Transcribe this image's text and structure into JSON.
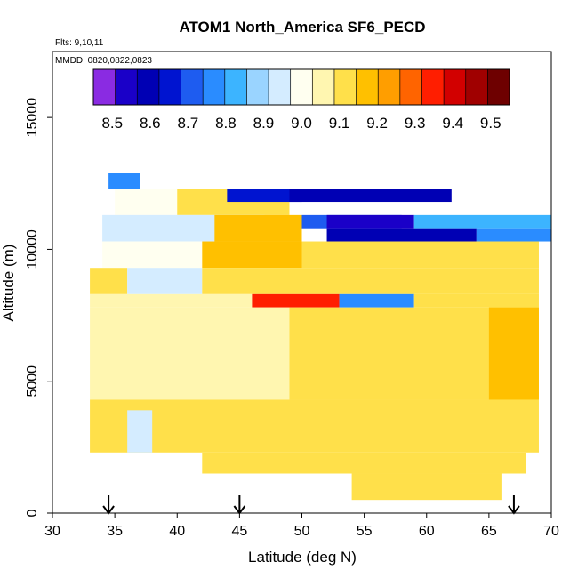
{
  "chart_data": {
    "type": "heatmap",
    "title": "ATOM1 North_America SF6_PECD",
    "info_lines": [
      "Flts: 9,10,11",
      "MMDD: 0820,0822,0823"
    ],
    "xlabel": "Latitude (deg N)",
    "ylabel": "Altitude (m)",
    "xlim": [
      30,
      70
    ],
    "ylim": [
      0,
      17500
    ],
    "x_ticks": [
      "30",
      "35",
      "40",
      "45",
      "50",
      "55",
      "60",
      "65",
      "70"
    ],
    "y_ticks": [
      "0",
      "5000",
      "10000",
      "15000"
    ],
    "arrow_latitudes": [
      34.5,
      45,
      67
    ],
    "colorbar": {
      "range": [
        8.45,
        9.55
      ],
      "ticks": [
        "8.5",
        "8.6",
        "8.7",
        "8.8",
        "8.9",
        "9.0",
        "9.1",
        "9.2",
        "9.3",
        "9.4",
        "9.5"
      ],
      "colors": [
        "#8a2be2",
        "#1a00c8",
        "#0000b4",
        "#0014d0",
        "#1e5cf0",
        "#2a8cff",
        "#3cb4ff",
        "#9ad4ff",
        "#d4ecff",
        "#fffff0",
        "#fff6b0",
        "#ffe04a",
        "#ffc000",
        "#ff9e00",
        "#ff6400",
        "#ff1e00",
        "#d20000",
        "#a00000",
        "#6e0000"
      ]
    },
    "grid": false,
    "regions": [
      {
        "lat": [
          34.5,
          37
        ],
        "alt": [
          12300,
          12900
        ],
        "value": 8.78
      },
      {
        "lat": [
          35,
          47
        ],
        "alt": [
          11300,
          12300
        ],
        "value": 9.0
      },
      {
        "lat": [
          40,
          49
        ],
        "alt": [
          11300,
          12300
        ],
        "value": 9.12
      },
      {
        "lat": [
          44,
          50
        ],
        "alt": [
          11800,
          12300
        ],
        "value": 8.68
      },
      {
        "lat": [
          49,
          62
        ],
        "alt": [
          11800,
          12300
        ],
        "value": 8.6
      },
      {
        "lat": [
          34,
          47
        ],
        "alt": [
          10300,
          11300
        ],
        "value": 8.95
      },
      {
        "lat": [
          43,
          50
        ],
        "alt": [
          10300,
          11300
        ],
        "value": 9.15
      },
      {
        "lat": [
          50,
          58
        ],
        "alt": [
          10800,
          11300
        ],
        "value": 8.72
      },
      {
        "lat": [
          52,
          59
        ],
        "alt": [
          10800,
          11300
        ],
        "value": 8.55
      },
      {
        "lat": [
          59,
          70
        ],
        "alt": [
          10800,
          11300
        ],
        "value": 8.82
      },
      {
        "lat": [
          52,
          64
        ],
        "alt": [
          10300,
          10800
        ],
        "value": 8.6
      },
      {
        "lat": [
          64,
          70
        ],
        "alt": [
          10300,
          10800
        ],
        "value": 8.76
      },
      {
        "lat": [
          34,
          42
        ],
        "alt": [
          9300,
          10300
        ],
        "value": 8.98
      },
      {
        "lat": [
          42,
          50
        ],
        "alt": [
          9300,
          10300
        ],
        "value": 9.2
      },
      {
        "lat": [
          50,
          69
        ],
        "alt": [
          9300,
          10300
        ],
        "value": 9.12
      },
      {
        "lat": [
          33,
          36
        ],
        "alt": [
          8300,
          9300
        ],
        "value": 9.1
      },
      {
        "lat": [
          36,
          42
        ],
        "alt": [
          8300,
          9300
        ],
        "value": 8.95
      },
      {
        "lat": [
          42,
          69
        ],
        "alt": [
          8300,
          9300
        ],
        "value": 9.1
      },
      {
        "lat": [
          33,
          46
        ],
        "alt": [
          7800,
          8300
        ],
        "value": 9.05
      },
      {
        "lat": [
          46,
          53
        ],
        "alt": [
          7800,
          8300
        ],
        "value": 9.35
      },
      {
        "lat": [
          53,
          59
        ],
        "alt": [
          7800,
          8300
        ],
        "value": 8.78
      },
      {
        "lat": [
          59,
          69
        ],
        "alt": [
          7800,
          8300
        ],
        "value": 9.1
      },
      {
        "lat": [
          33,
          49
        ],
        "alt": [
          4300,
          7800
        ],
        "value": 9.05
      },
      {
        "lat": [
          49,
          69
        ],
        "alt": [
          4300,
          7800
        ],
        "value": 9.12
      },
      {
        "lat": [
          65,
          69
        ],
        "alt": [
          4300,
          7800
        ],
        "value": 9.2
      },
      {
        "lat": [
          33,
          69
        ],
        "alt": [
          2300,
          4300
        ],
        "value": 9.12
      },
      {
        "lat": [
          36,
          38
        ],
        "alt": [
          2300,
          3900
        ],
        "value": 8.95
      },
      {
        "lat": [
          42,
          68
        ],
        "alt": [
          1500,
          2300
        ],
        "value": 9.12
      },
      {
        "lat": [
          54,
          66
        ],
        "alt": [
          500,
          1500
        ],
        "value": 9.1
      }
    ],
    "legend_placement": "top (inside plot)"
  }
}
